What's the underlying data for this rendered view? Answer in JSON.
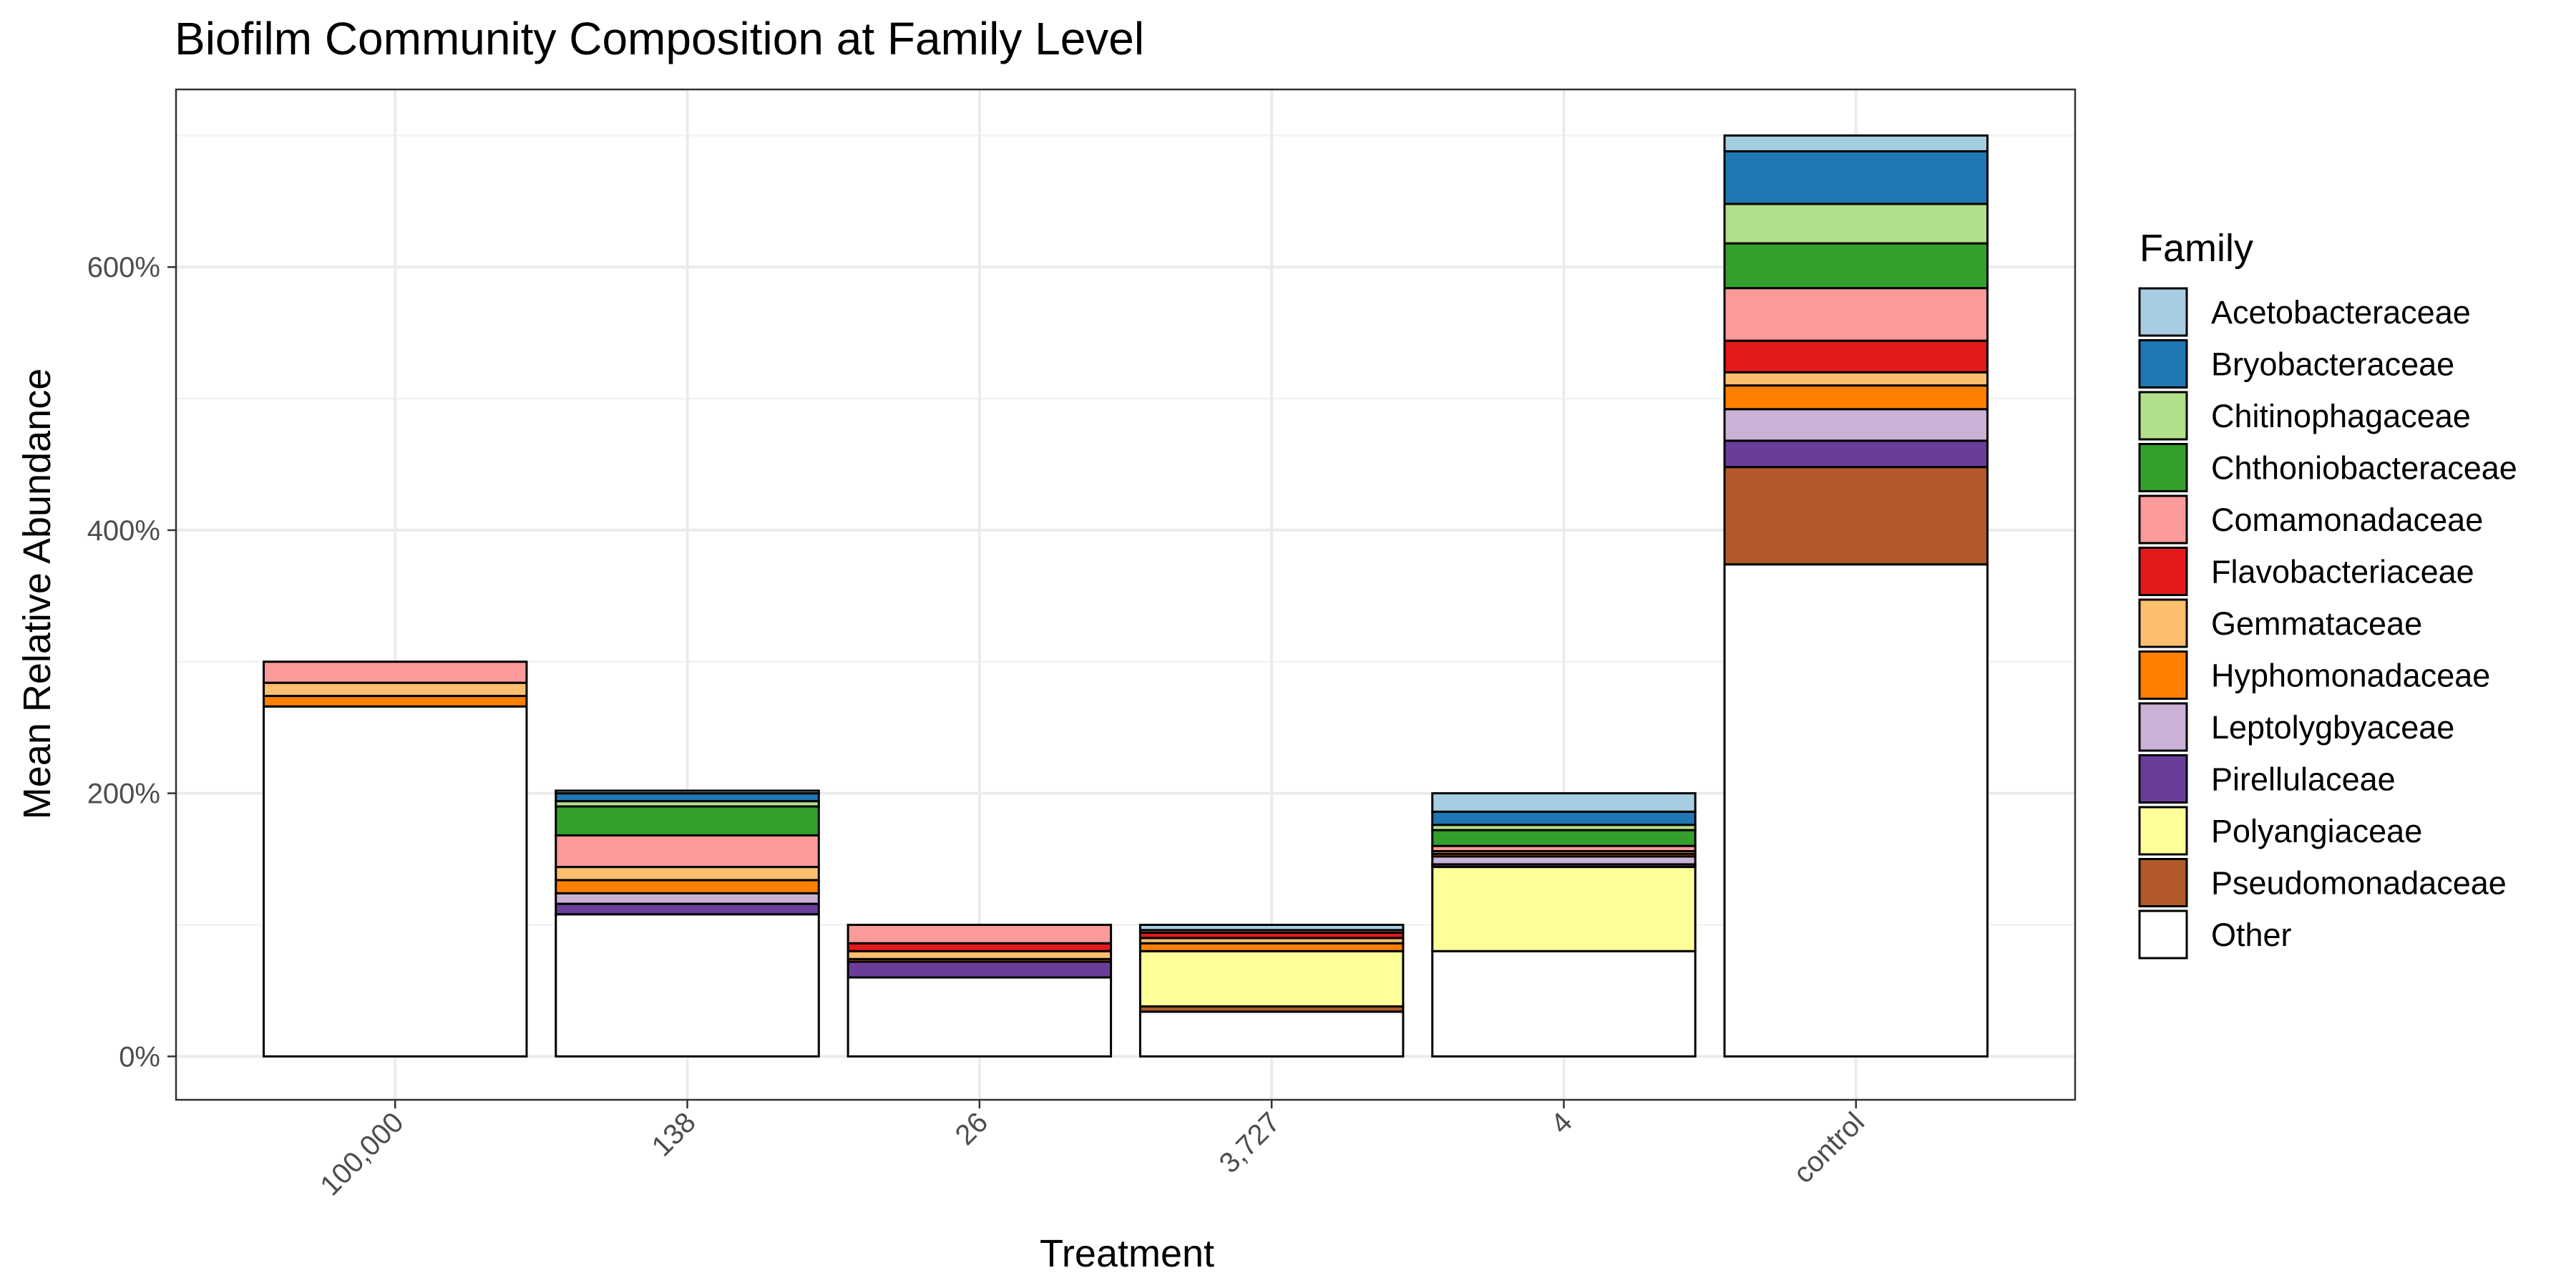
{
  "chart_data": {
    "type": "bar",
    "stacked": true,
    "title": "Biofilm Community Composition at Family Level",
    "xlabel": "Treatment",
    "ylabel": "Mean Relative Abundance",
    "categories": [
      "100,000",
      "138",
      "26",
      "3,727",
      "4",
      "control"
    ],
    "y_ticks": [
      "0%",
      "200%",
      "400%",
      "600%"
    ],
    "y_tick_values": [
      0,
      200,
      400,
      600
    ],
    "ylim": [
      -33,
      735
    ],
    "grid": true,
    "legend": {
      "title": "Family",
      "position": "right",
      "entries": [
        {
          "name": "Acetobacteraceae",
          "color": "#a6cee3"
        },
        {
          "name": "Bryobacteraceae",
          "color": "#1f78b4"
        },
        {
          "name": "Chitinophagaceae",
          "color": "#b2df8a"
        },
        {
          "name": "Chthoniobacteraceae",
          "color": "#33a02c"
        },
        {
          "name": "Comamonadaceae",
          "color": "#fb9a99"
        },
        {
          "name": "Flavobacteriaceae",
          "color": "#e31a1c"
        },
        {
          "name": "Gemmataceae",
          "color": "#fdbf6f"
        },
        {
          "name": "Hyphomonadaceae",
          "color": "#ff7f00"
        },
        {
          "name": "Leptolygbyaceae",
          "color": "#cab2d6"
        },
        {
          "name": "Pirellulaceae",
          "color": "#6a3d9a"
        },
        {
          "name": "Polyangiaceae",
          "color": "#ffff99"
        },
        {
          "name": "Pseudomonadaceae",
          "color": "#b15928"
        },
        {
          "name": "Other",
          "color": "#ffffff"
        }
      ]
    },
    "series": [
      {
        "name": "Acetobacteraceae",
        "values": [
          0,
          2,
          0,
          4,
          14,
          12
        ]
      },
      {
        "name": "Bryobacteraceae",
        "values": [
          0,
          6,
          0,
          0,
          10,
          40
        ]
      },
      {
        "name": "Chitinophagaceae",
        "values": [
          0,
          4,
          0,
          0,
          4,
          30
        ]
      },
      {
        "name": "Chthoniobacteraceae",
        "values": [
          0,
          22,
          0,
          0,
          12,
          34
        ]
      },
      {
        "name": "Comamonadaceae",
        "values": [
          16,
          24,
          14,
          2,
          4,
          40
        ]
      },
      {
        "name": "Flavobacteriaceae",
        "values": [
          0,
          0,
          6,
          4,
          0,
          24
        ]
      },
      {
        "name": "Gemmataceae",
        "values": [
          10,
          10,
          6,
          4,
          2,
          10
        ]
      },
      {
        "name": "Hyphomonadaceae",
        "values": [
          8,
          10,
          2,
          6,
          2,
          18
        ]
      },
      {
        "name": "Leptolygbyaceae",
        "values": [
          0,
          8,
          0,
          0,
          6,
          24
        ]
      },
      {
        "name": "Pirellulaceae",
        "values": [
          0,
          8,
          12,
          0,
          2,
          20
        ]
      },
      {
        "name": "Polyangiaceae",
        "values": [
          0,
          0,
          0,
          42,
          64,
          0
        ]
      },
      {
        "name": "Pseudomonadaceae",
        "values": [
          0,
          0,
          0,
          4,
          0,
          74
        ]
      },
      {
        "name": "Other",
        "values": [
          266,
          108,
          60,
          34,
          80,
          374
        ]
      }
    ]
  }
}
